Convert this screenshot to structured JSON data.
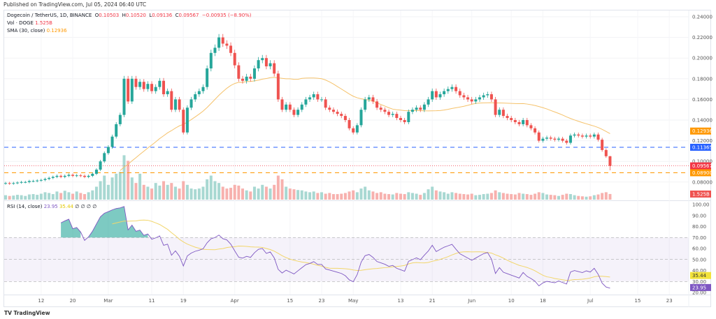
{
  "published": "Published on TradingView.com, Jul 05, 2024 06:40 UTC",
  "legend": {
    "symbol": "Dogecoin / TetherUS, 1D, BINANCE",
    "o_label": "O",
    "o": "0.10503",
    "h_label": "H",
    "h": "0.10520",
    "l_label": "L",
    "l": "0.09136",
    "c_label": "C",
    "c": "0.09567",
    "change": "−0.00935 (−8.90%)",
    "vol_label": "Vol · DOGE",
    "vol": "1.525B",
    "sma_label": "SMA (30, close)",
    "sma": "0.12936",
    "rsi_label": "RSI (14, close)",
    "rsi": "23.95",
    "rsi_ma": "35.44",
    "rsi_extra": "∅ ∅ ∅ ∅"
  },
  "brand": "TradingView",
  "colors": {
    "up": "#26a69a",
    "down": "#ef5350",
    "sma": "#f5c26b",
    "rsi": "#7e57c2",
    "rsi_ma": "#f2d66b",
    "blue_line": "#2962ff",
    "orange_line": "#ff9800",
    "badge_sma": "#ff9800",
    "badge_price": "#f23645"
  },
  "chart_data": [
    {
      "type": "candlestick",
      "title": "Dogecoin / TetherUS, 1D, BINANCE",
      "start_date": "2024-02-03",
      "end_date": "2024-07-05",
      "ylim": [
        0.07,
        0.245
      ],
      "y_ticks": [
        "0.24000",
        "0.22000",
        "0.20000",
        "0.18000",
        "0.16000",
        "0.14000",
        "0.12000",
        "0.10000",
        "0.08000"
      ],
      "x_ticks": [
        "12",
        "20",
        "Mar",
        "11",
        "19",
        "Apr",
        "15",
        "23",
        "May",
        "13",
        "21",
        "Jun",
        "10",
        "18",
        "Jul",
        "15",
        "23"
      ],
      "close": [
        0.079,
        0.0785,
        0.079,
        0.0795,
        0.08,
        0.08,
        0.081,
        0.081,
        0.0815,
        0.082,
        0.083,
        0.084,
        0.085,
        0.086,
        0.085,
        0.086,
        0.087,
        0.086,
        0.0865,
        0.086,
        0.085,
        0.086,
        0.088,
        0.092,
        0.1,
        0.108,
        0.114,
        0.124,
        0.136,
        0.145,
        0.18,
        0.158,
        0.18,
        0.172,
        0.177,
        0.17,
        0.175,
        0.168,
        0.172,
        0.178,
        0.165,
        0.168,
        0.15,
        0.16,
        0.15,
        0.128,
        0.152,
        0.16,
        0.165,
        0.168,
        0.172,
        0.19,
        0.205,
        0.21,
        0.22,
        0.214,
        0.212,
        0.205,
        0.193,
        0.18,
        0.178,
        0.182,
        0.18,
        0.19,
        0.198,
        0.2,
        0.192,
        0.195,
        0.185,
        0.16,
        0.15,
        0.155,
        0.15,
        0.145,
        0.15,
        0.155,
        0.16,
        0.162,
        0.165,
        0.16,
        0.16,
        0.152,
        0.15,
        0.148,
        0.146,
        0.144,
        0.14,
        0.132,
        0.128,
        0.135,
        0.15,
        0.16,
        0.162,
        0.158,
        0.152,
        0.15,
        0.148,
        0.145,
        0.146,
        0.142,
        0.14,
        0.138,
        0.148,
        0.15,
        0.152,
        0.15,
        0.155,
        0.16,
        0.168,
        0.162,
        0.165,
        0.168,
        0.17,
        0.172,
        0.168,
        0.164,
        0.162,
        0.16,
        0.158,
        0.16,
        0.162,
        0.164,
        0.165,
        0.16,
        0.145,
        0.15,
        0.144,
        0.142,
        0.14,
        0.138,
        0.136,
        0.14,
        0.135,
        0.132,
        0.128,
        0.12,
        0.122,
        0.123,
        0.122,
        0.121,
        0.122,
        0.12,
        0.118,
        0.125,
        0.126,
        0.125,
        0.124,
        0.125,
        0.124,
        0.126,
        0.121,
        0.111,
        0.105,
        0.09567
      ],
      "volume_billions": [
        1.2,
        1.0,
        1.1,
        1.3,
        1.2,
        1.0,
        1.4,
        1.5,
        1.3,
        1.6,
        2.0,
        1.8,
        1.5,
        2.2,
        1.8,
        2.4,
        2.0,
        1.6,
        2.2,
        1.8,
        1.5,
        2.0,
        2.5,
        3.5,
        5.0,
        6.5,
        4.0,
        6.0,
        7.0,
        7.5,
        12.0,
        10.5,
        6.0,
        4.5,
        7.0,
        4.0,
        3.5,
        3.0,
        4.5,
        3.8,
        5.0,
        4.0,
        4.5,
        3.5,
        3.0,
        5.0,
        4.0,
        3.0,
        2.8,
        3.0,
        3.5,
        5.5,
        6.5,
        5.0,
        4.5,
        3.5,
        3.0,
        3.2,
        4.0,
        3.8,
        3.0,
        2.5,
        2.2,
        3.5,
        3.0,
        4.0,
        3.5,
        3.0,
        4.0,
        6.5,
        5.5,
        3.5,
        3.0,
        2.8,
        2.6,
        2.5,
        2.2,
        2.0,
        2.2,
        1.8,
        2.0,
        1.6,
        1.8,
        1.5,
        1.5,
        1.6,
        1.8,
        2.2,
        2.5,
        2.0,
        3.0,
        3.5,
        2.5,
        2.2,
        1.8,
        2.0,
        1.6,
        1.5,
        1.4,
        1.8,
        1.6,
        1.5,
        2.0,
        1.8,
        1.6,
        1.3,
        1.8,
        2.8,
        3.5,
        2.5,
        2.2,
        2.0,
        1.6,
        2.0,
        1.8,
        1.6,
        1.5,
        1.4,
        1.6,
        1.2,
        1.3,
        1.5,
        1.6,
        1.8,
        2.5,
        2.0,
        1.8,
        1.6,
        1.5,
        1.4,
        1.8,
        1.6,
        1.5,
        1.3,
        1.6,
        2.0,
        1.8,
        1.4,
        1.3,
        1.2,
        1.0,
        1.3,
        1.6,
        1.5,
        1.2,
        1.0,
        0.9,
        0.8,
        0.9,
        1.2,
        1.4,
        1.8,
        2.0,
        1.525
      ],
      "last_ohlc": {
        "open": 0.10503,
        "high": 0.1052,
        "low": 0.09136,
        "close": 0.09567
      },
      "sma_period": 30,
      "sma_last": 0.12936,
      "horizontal_lines": [
        {
          "value": 0.11365,
          "label": "0.11365",
          "color": "#2962ff",
          "style": "dashed"
        },
        {
          "value": 0.089,
          "label": "0.08900",
          "color": "#ff9800",
          "style": "dashed"
        }
      ],
      "price_badges": [
        {
          "label": "0.12936",
          "value": 0.12936,
          "color": "#ff9800"
        },
        {
          "label": "0.11365",
          "value": 0.11365,
          "color": "#2962ff"
        },
        {
          "label": "0.09567",
          "value": 0.09567,
          "color": "#f23645"
        },
        {
          "label": "0.08900",
          "value": 0.089,
          "color": "#ff9800"
        }
      ],
      "volume_badge": "1.525B"
    },
    {
      "type": "line",
      "title": "RSI (14, close)",
      "ylim": [
        20,
        100
      ],
      "y_ticks": [
        "100.00",
        "90.00",
        "80.00",
        "70.00",
        "60.00",
        "50.00",
        "40.00",
        "30.00",
        "20.00"
      ],
      "bands": [
        30,
        50,
        70
      ],
      "rsi_period": 14,
      "rsi_ma_period": 14,
      "last_rsi": 23.95,
      "last_rsi_ma": 35.44,
      "badges": [
        {
          "label": "35.44",
          "color": "#f2e33b",
          "text": "#333"
        },
        {
          "label": "23.95",
          "color": "#7e57c2",
          "text": "#fff"
        }
      ]
    }
  ]
}
